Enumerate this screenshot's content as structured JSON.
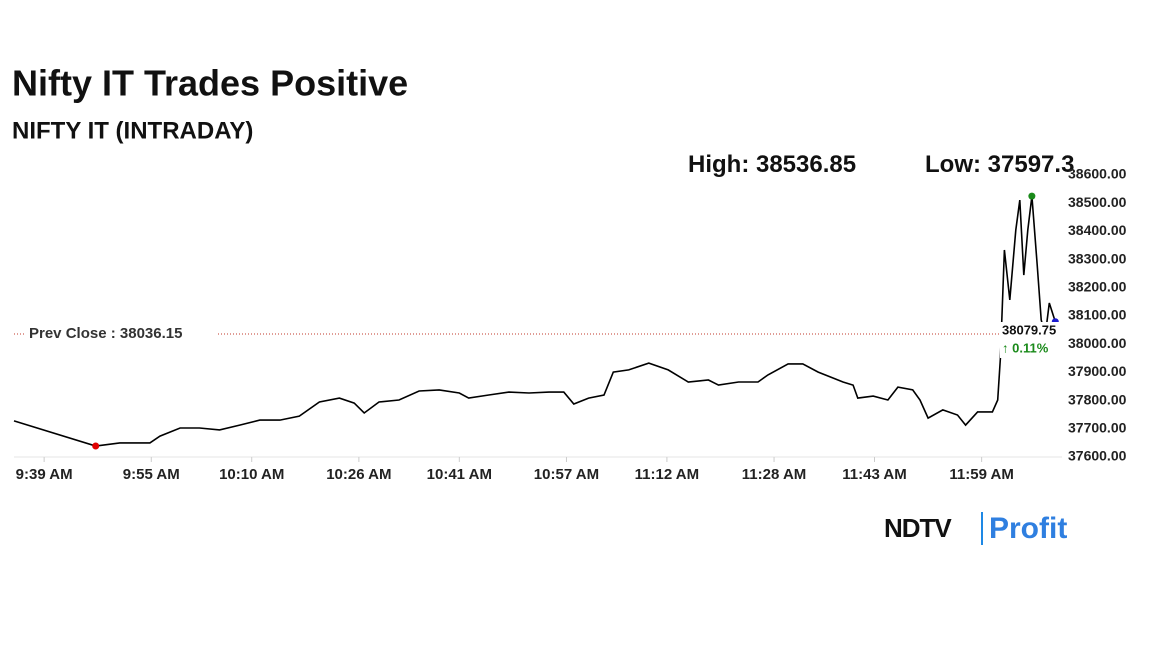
{
  "chart_data": {
    "type": "line",
    "title": "Nifty IT Trades Positive",
    "subtitle": "NIFTY IT (INTRADAY)",
    "high_label": "High:",
    "high": 38536.85,
    "low_label": "Low:",
    "low": 37597.3,
    "prev_close_label": "Prev Close :",
    "prev_close": 38036.15,
    "change_label": "↑ 0.11%",
    "logo": {
      "left": "NDTV",
      "right": "Profit"
    },
    "x": [
      574.5,
      586.7,
      590.3,
      594.8,
      596.3,
      599.3,
      602.2,
      605.2,
      608.2,
      611.2,
      614.2,
      617.1,
      620.1,
      623.1,
      625.3,
      626.8,
      629.0,
      632.0,
      635.0,
      638.0,
      641.0,
      642.4,
      645.4,
      648.4,
      651.4,
      654.4,
      656.6,
      658.1,
      660.3,
      662.6,
      664.0,
      666.3,
      669.3,
      672.2,
      675.2,
      678.2,
      679.7,
      682.7,
      685.6,
      687.1,
      690.1,
      692.3,
      694.6,
      696.8,
      698.3,
      699.8,
      700.5,
      702.8,
      705.0,
      706.5,
      708.7,
      709.8,
      711.0,
      713.2,
      715.4,
      716.6,
      718.4,
      720.6,
      721.4,
      721.8,
      722.4,
      723.2,
      724.1,
      724.7,
      725.3,
      725.9,
      726.5,
      727.3,
      727.9,
      728.5,
      729.1,
      730.0
    ],
    "series": [
      {
        "name": "NIFTY IT",
        "color": "#000000",
        "values": [
          37728,
          37639,
          37650,
          37650,
          37674,
          37703,
          37703,
          37696,
          37713,
          37731,
          37731,
          37745,
          37795,
          37809,
          37791,
          37756,
          37795,
          37802,
          37834,
          37838,
          37827,
          37809,
          37820,
          37830,
          37827,
          37830,
          37830,
          37788,
          37809,
          37820,
          37901,
          37909,
          37933,
          37909,
          37866,
          37873,
          37855,
          37866,
          37866,
          37891,
          37930,
          37930,
          37901,
          37880,
          37866,
          37855,
          37809,
          37816,
          37802,
          37848,
          37838,
          37802,
          37738,
          37767,
          37749,
          37713,
          37760,
          37760,
          37802,
          37951,
          38334,
          38157,
          38405,
          38511,
          38245,
          38405,
          38525,
          38281,
          38086,
          38033,
          38146,
          38079.75
        ]
      }
    ],
    "xlim": [
      574.5,
      731
    ],
    "xticks": [
      {
        "value": 579,
        "label": "9:39 AM"
      },
      {
        "value": 595,
        "label": "9:55 AM"
      },
      {
        "value": 610,
        "label": "10:10 AM"
      },
      {
        "value": 626,
        "label": "10:26 AM"
      },
      {
        "value": 641,
        "label": "10:41 AM"
      },
      {
        "value": 657,
        "label": "10:57 AM"
      },
      {
        "value": 672,
        "label": "11:12 AM"
      },
      {
        "value": 688,
        "label": "11:28 AM"
      },
      {
        "value": 703,
        "label": "11:43 AM"
      },
      {
        "value": 719,
        "label": "11:59 AM"
      }
    ],
    "ylim": [
      37600,
      38600
    ],
    "yticks": [
      {
        "value": 37600,
        "label": "37600.00"
      },
      {
        "value": 37700,
        "label": "37700.00"
      },
      {
        "value": 37800,
        "label": "37800.00"
      },
      {
        "value": 37900,
        "label": "37900.00"
      },
      {
        "value": 38000,
        "label": "38000.00"
      },
      {
        "value": 38100,
        "label": "38100.00"
      },
      {
        "value": 38200,
        "label": "38200.00"
      },
      {
        "value": 38300,
        "label": "38300.00"
      },
      {
        "value": 38400,
        "label": "38400.00"
      },
      {
        "value": 38500,
        "label": "38500.00"
      },
      {
        "value": 38600,
        "label": "38600.00"
      }
    ],
    "low_marker_color": "#e00000",
    "high_marker_color": "#1a8a1a",
    "last_marker_color": "#1a1ad0",
    "prev_close_color": "#c0392b",
    "change_color": "#1a8a1a"
  }
}
